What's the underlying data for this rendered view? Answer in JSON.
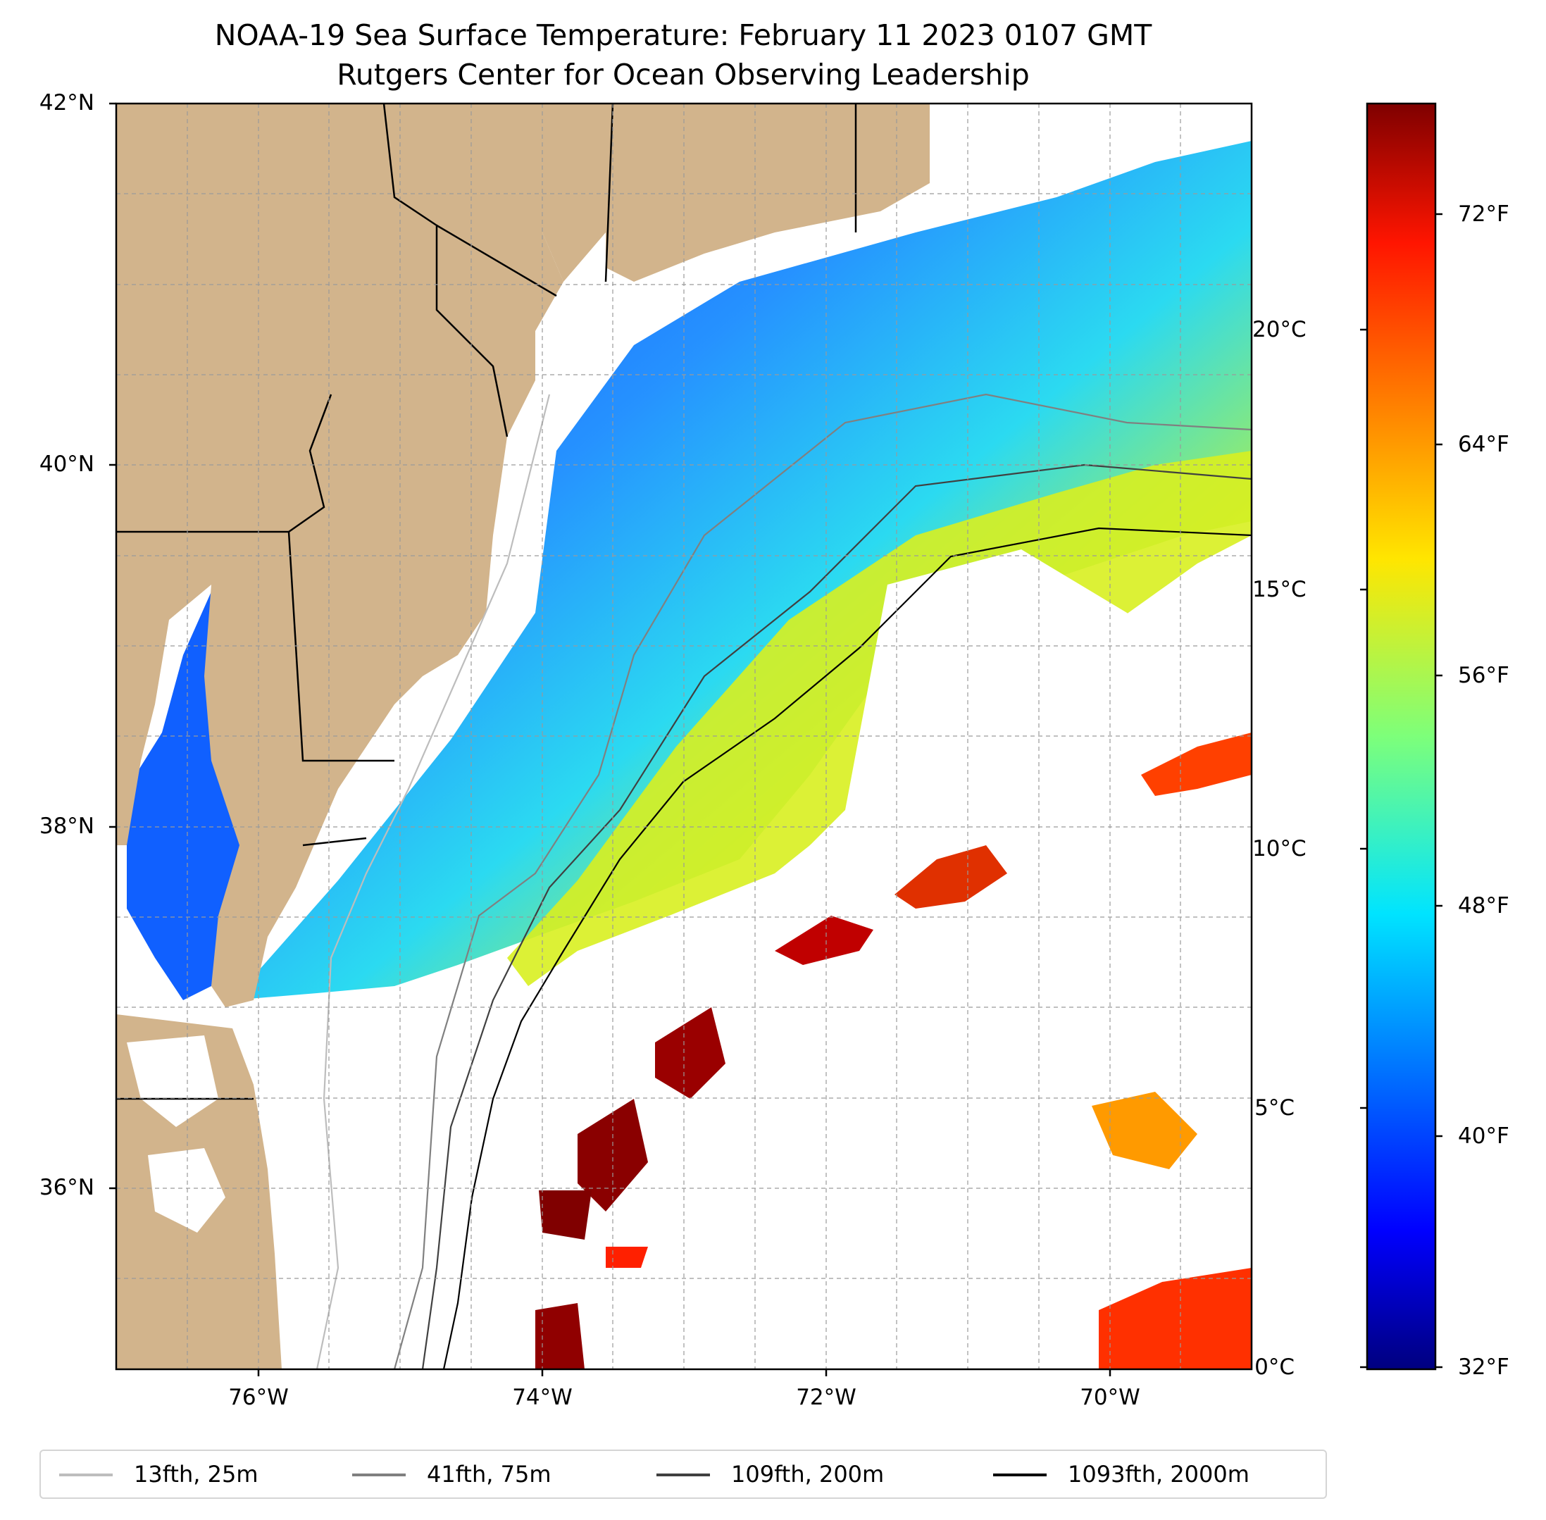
{
  "title": {
    "line1": "NOAA-19 Sea Surface Temperature: February 11 2023 0107 GMT",
    "line2": "Rutgers Center for Ocean Observing Leadership"
  },
  "map": {
    "lat_range": [
      35,
      42
    ],
    "lon_range": [
      -77,
      -69
    ],
    "lat_ticks": [
      {
        "value": 42,
        "label": "42°N"
      },
      {
        "value": 40,
        "label": "40°N"
      },
      {
        "value": 38,
        "label": "38°N"
      },
      {
        "value": 36,
        "label": "36°N"
      }
    ],
    "lon_ticks": [
      {
        "value": -76,
        "label": "76°W"
      },
      {
        "value": -74,
        "label": "74°W"
      },
      {
        "value": -72,
        "label": "72°W"
      },
      {
        "value": -70,
        "label": "70°W"
      }
    ],
    "gridlines": true,
    "land_color": "#d2b48c"
  },
  "colorbar": {
    "colormap": "jet",
    "celsius_ticks": [
      {
        "value": 0,
        "label": "0°C"
      },
      {
        "value": 5,
        "label": "5°C"
      },
      {
        "value": 10,
        "label": "10°C"
      },
      {
        "value": 15,
        "label": "15°C"
      },
      {
        "value": 20,
        "label": "20°C"
      }
    ],
    "fahrenheit_ticks": [
      {
        "value": 32,
        "label": "32°F"
      },
      {
        "value": 40,
        "label": "40°F"
      },
      {
        "value": 48,
        "label": "48°F"
      },
      {
        "value": 56,
        "label": "56°F"
      },
      {
        "value": 64,
        "label": "64°F"
      },
      {
        "value": 72,
        "label": "72°F"
      }
    ]
  },
  "legend": {
    "items": [
      {
        "label": "13fth, 25m",
        "color": "#bdbdbd"
      },
      {
        "label": "41fth, 75m",
        "color": "#808080"
      },
      {
        "label": "109fth, 200m",
        "color": "#404040"
      },
      {
        "label": "1093fth, 2000m",
        "color": "#000000"
      }
    ]
  }
}
